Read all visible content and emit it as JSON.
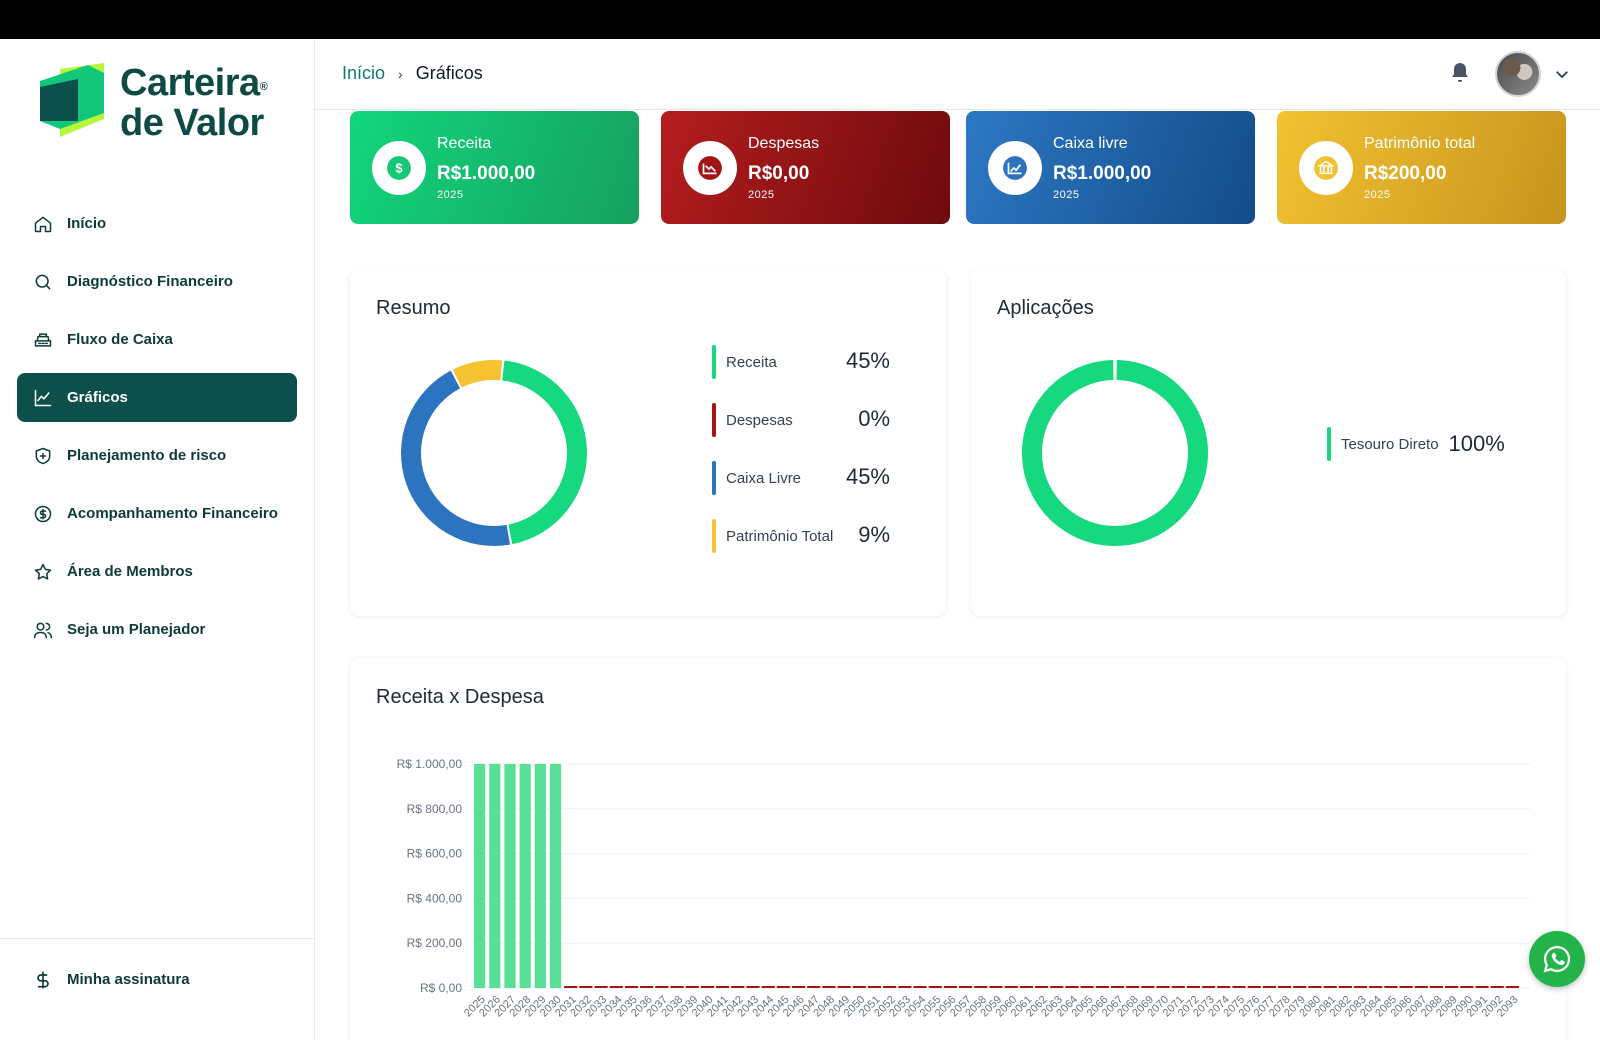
{
  "brand": {
    "line1": "Carteira",
    "line2": "de Valor",
    "reg": "®"
  },
  "sidebar": {
    "items": [
      {
        "label": "Início",
        "icon": "home-icon"
      },
      {
        "label": "Diagnóstico Financeiro",
        "icon": "search-icon"
      },
      {
        "label": "Fluxo de Caixa",
        "icon": "cash-register-icon"
      },
      {
        "label": "Gráficos",
        "icon": "chart-line-icon",
        "active": true
      },
      {
        "label": "Planejamento de risco",
        "icon": "shield-plus-icon"
      },
      {
        "label": "Acompanhamento Financeiro",
        "icon": "dollar-circle-icon"
      },
      {
        "label": "Área de Membros",
        "icon": "star-icon"
      },
      {
        "label": "Seja um Planejador",
        "icon": "users-icon"
      }
    ],
    "bottom": {
      "label": "Minha assinatura",
      "icon": "dollar-icon"
    }
  },
  "header": {
    "breadcrumb_home": "Início",
    "breadcrumb_sep": "›",
    "breadcrumb_current": "Gráficos"
  },
  "kpis": [
    {
      "label": "Receita",
      "value": "R$1.000,00",
      "year": "2025",
      "icon": "dollar-circle-icon"
    },
    {
      "label": "Despesas",
      "value": "R$0,00",
      "year": "2025",
      "icon": "chart-down-icon"
    },
    {
      "label": "Caixa livre",
      "value": "R$1.000,00",
      "year": "2025",
      "icon": "chart-up-icon"
    },
    {
      "label": "Patrimônio total",
      "value": "R$200,00",
      "year": "2025",
      "icon": "bank-icon"
    }
  ],
  "resumo": {
    "title": "Resumo",
    "legend": [
      {
        "name": "Receita",
        "pct": "45%",
        "color": "#16d97f"
      },
      {
        "name": "Despesas",
        "pct": "0%",
        "color": "#a31416"
      },
      {
        "name": "Caixa Livre",
        "pct": "45%",
        "color": "#2c73c0"
      },
      {
        "name": "Patrimônio Total",
        "pct": "9%",
        "color": "#f5c231"
      }
    ]
  },
  "aplicacoes": {
    "title": "Aplicações",
    "legend": [
      {
        "name": "Tesouro Direto",
        "pct": "100%",
        "color": "#16d97f"
      }
    ]
  },
  "receita_despesa": {
    "title": "Receita x Despesa"
  },
  "chart_data": [
    {
      "type": "pie",
      "title": "Resumo",
      "categories": [
        "Receita",
        "Despesas",
        "Caixa Livre",
        "Patrimônio Total"
      ],
      "values": [
        45,
        0,
        45,
        9
      ],
      "colors": [
        "#16d97f",
        "#a31416",
        "#2c73c0",
        "#f5c231"
      ]
    },
    {
      "type": "pie",
      "title": "Aplicações",
      "categories": [
        "Tesouro Direto"
      ],
      "values": [
        100
      ],
      "colors": [
        "#16d97f"
      ]
    },
    {
      "type": "bar",
      "title": "Receita x Despesa",
      "x_start": 2025,
      "x_end": 2093,
      "yticks": [
        "R$ 1.000,00",
        "R$ 800,00",
        "R$ 600,00",
        "R$ 400,00",
        "R$ 200,00",
        "R$ 0,00"
      ],
      "ylim": [
        0,
        1000
      ],
      "series": [
        {
          "name": "Receita",
          "color": "#58e196",
          "values": [
            1000,
            1000,
            1000,
            1000,
            1000,
            1000
          ]
        },
        {
          "name": "Despesas",
          "color": "#a31416",
          "values": [
            0
          ]
        }
      ]
    }
  ],
  "colors": {
    "primary": "#0d4f4a",
    "whatsapp": "#22b34b"
  }
}
